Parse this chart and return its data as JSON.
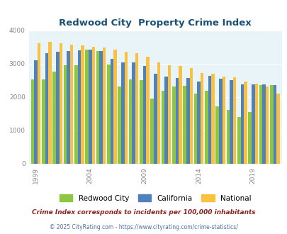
{
  "years": [
    1999,
    2000,
    2001,
    2002,
    2003,
    2004,
    2005,
    2006,
    2007,
    2008,
    2009,
    2010,
    2011,
    2012,
    2013,
    2014,
    2015,
    2016,
    2017,
    2018,
    2019,
    2020,
    2021
  ],
  "redwood_city": [
    2530,
    2530,
    2760,
    2950,
    2950,
    3420,
    3380,
    2980,
    2320,
    2520,
    2510,
    1960,
    2200,
    2310,
    2340,
    2110,
    2200,
    1730,
    1620,
    1410,
    1550,
    2360,
    2360
  ],
  "california": [
    3110,
    3310,
    3350,
    3380,
    3400,
    3420,
    3380,
    3150,
    3050,
    3040,
    2930,
    2700,
    2620,
    2580,
    2580,
    2470,
    2640,
    2560,
    2510,
    2380,
    2380,
    2380,
    2370
  ],
  "national": [
    3610,
    3650,
    3620,
    3580,
    3560,
    3500,
    3480,
    3420,
    3360,
    3310,
    3210,
    3050,
    2960,
    2930,
    2870,
    2720,
    2700,
    2620,
    2590,
    2460,
    2400,
    2320,
    2100
  ],
  "redwood_color": "#8dc63f",
  "california_color": "#4f81bd",
  "national_color": "#fac040",
  "title": "Redwood City  Property Crime Index",
  "title_color": "#1a5276",
  "plot_bg": "#e8f4f8",
  "ylim": [
    0,
    4000
  ],
  "yticks": [
    0,
    1000,
    2000,
    3000,
    4000
  ],
  "tick_years": [
    1999,
    2004,
    2009,
    2014,
    2019
  ],
  "footnote1": "Crime Index corresponds to incidents per 100,000 inhabitants",
  "footnote2": "© 2025 CityRating.com - https://www.cityrating.com/crime-statistics/",
  "footnote1_color": "#8b2222",
  "footnote2_color": "#4a6fa5"
}
